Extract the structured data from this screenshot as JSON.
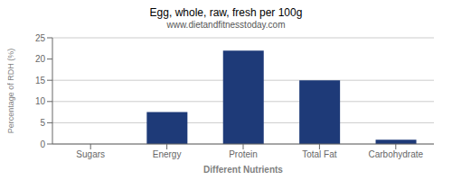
{
  "chart_data": {
    "type": "bar",
    "title": "Egg, whole, raw, fresh per 100g",
    "subtitle": "www.dietandfitnesstoday.com",
    "xlabel": "Different Nutrients",
    "ylabel": "Percentage of RDH (%)",
    "categories": [
      "Sugars",
      "Energy",
      "Protein",
      "Total Fat",
      "Carbohydrate"
    ],
    "values": [
      0.0,
      7.5,
      22.0,
      15.0,
      1.0
    ],
    "color": "#1e3a78",
    "ylim": [
      0,
      25
    ],
    "yticks": [
      0,
      5,
      10,
      15,
      20,
      25
    ],
    "grid": true
  }
}
